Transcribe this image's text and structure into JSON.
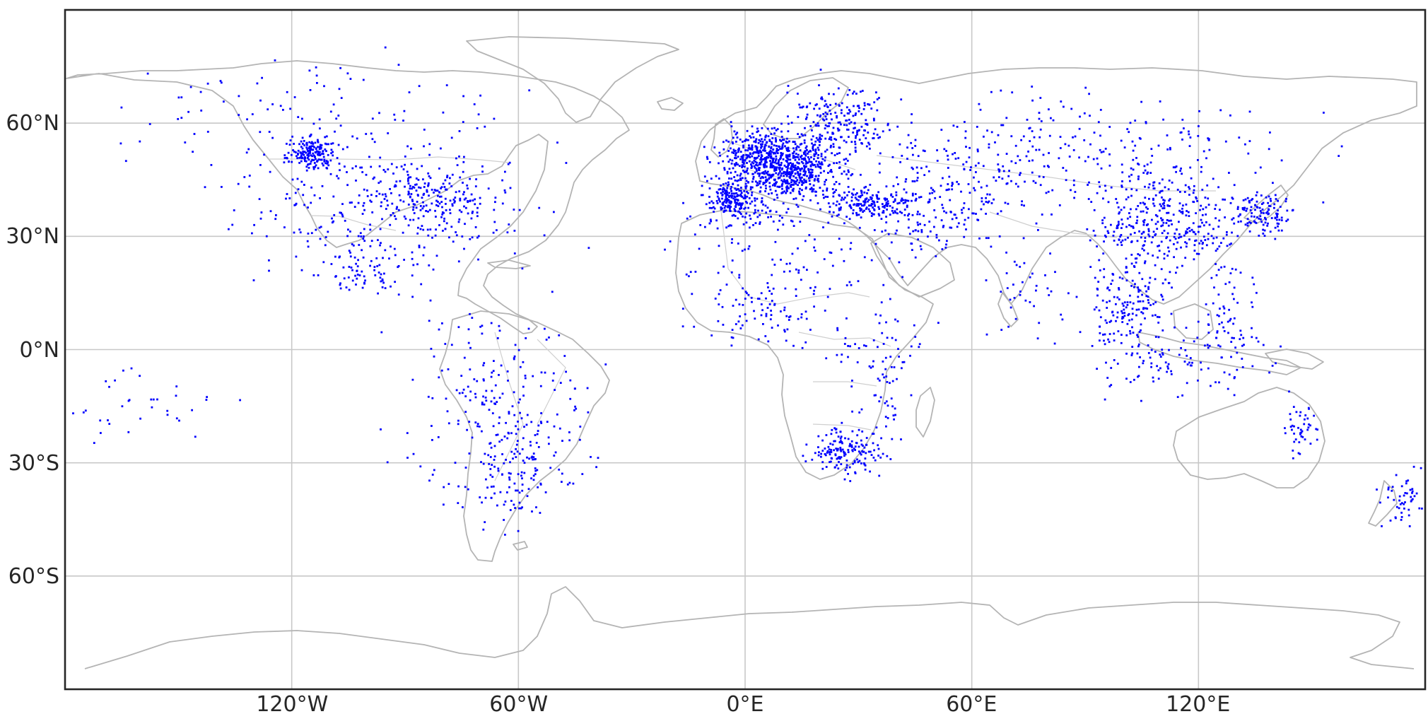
{
  "map": {
    "projection": "plate-carree",
    "lon_range": [
      -180,
      180
    ],
    "lat_range": [
      -90,
      90
    ],
    "grid": true,
    "point_color": "#0000ff",
    "coastline_color": "#b4b4b4",
    "x_ticks": [
      {
        "lon": -120,
        "label": "120°W"
      },
      {
        "lon": -60,
        "label": "60°W"
      },
      {
        "lon": 0,
        "label": "0°E"
      },
      {
        "lon": 60,
        "label": "60°E"
      },
      {
        "lon": 120,
        "label": "120°E"
      }
    ],
    "y_ticks": [
      {
        "lat": 60,
        "label": "60°N"
      },
      {
        "lat": 30,
        "label": "30°N"
      },
      {
        "lat": 0,
        "label": "0°N"
      },
      {
        "lat": -30,
        "label": "30°S"
      },
      {
        "lat": -60,
        "label": "60°S"
      }
    ],
    "station_clusters": [
      {
        "lon": 5,
        "lat": 50,
        "slon": 6,
        "slat": 4,
        "n": 500
      },
      {
        "lon": 15,
        "lat": 47,
        "slon": 6,
        "slat": 4,
        "n": 350
      },
      {
        "lon": -4,
        "lat": 40,
        "slon": 3,
        "slat": 2,
        "n": 160
      },
      {
        "lon": 25,
        "lat": 60,
        "slon": 7,
        "slat": 5,
        "n": 220
      },
      {
        "lon": 33,
        "lat": 39,
        "slon": 6,
        "slat": 2,
        "n": 170
      },
      {
        "lon": 0,
        "lat": 36,
        "slon": 8,
        "slat": 2,
        "n": 60
      },
      {
        "lon": -115,
        "lat": 52,
        "slon": 3,
        "slat": 2,
        "n": 170
      },
      {
        "lon": -95,
        "lat": 38,
        "slon": 18,
        "slat": 9,
        "n": 320
      },
      {
        "lon": -80,
        "lat": 41,
        "slon": 6,
        "slat": 4,
        "n": 120
      },
      {
        "lon": -110,
        "lat": 62,
        "slon": 25,
        "slat": 8,
        "n": 110
      },
      {
        "lon": -100,
        "lat": 20,
        "slon": 6,
        "slat": 4,
        "n": 60
      },
      {
        "lon": -65,
        "lat": -15,
        "slon": 12,
        "slat": 12,
        "n": 220
      },
      {
        "lon": -62,
        "lat": -33,
        "slon": 5,
        "slat": 8,
        "n": 100
      },
      {
        "lon": 5,
        "lat": 10,
        "slon": 8,
        "slat": 4,
        "n": 90
      },
      {
        "lon": 10,
        "lat": 25,
        "slon": 15,
        "slat": 6,
        "n": 80
      },
      {
        "lon": 27,
        "lat": -27,
        "slon": 5,
        "slat": 3,
        "n": 160
      },
      {
        "lon": 35,
        "lat": -5,
        "slon": 6,
        "slat": 10,
        "n": 90
      },
      {
        "lon": 50,
        "lat": 35,
        "slon": 10,
        "slat": 5,
        "n": 140
      },
      {
        "lon": 90,
        "lat": 53,
        "slon": 28,
        "slat": 8,
        "n": 260
      },
      {
        "lon": 112,
        "lat": 33,
        "slon": 10,
        "slat": 7,
        "n": 360
      },
      {
        "lon": 137,
        "lat": 36,
        "slon": 4,
        "slat": 3,
        "n": 110
      },
      {
        "lon": 102,
        "lat": 12,
        "slon": 5,
        "slat": 6,
        "n": 140
      },
      {
        "lon": 115,
        "lat": -3,
        "slon": 12,
        "slat": 5,
        "n": 110
      },
      {
        "lon": 128,
        "lat": 8,
        "slon": 5,
        "slat": 6,
        "n": 60
      },
      {
        "lon": 147,
        "lat": -21,
        "slon": 2,
        "slat": 4,
        "n": 45
      },
      {
        "lon": 174,
        "lat": -40,
        "slon": 3,
        "slat": 3,
        "n": 50
      },
      {
        "lon": -160,
        "lat": -15,
        "slon": 12,
        "slat": 5,
        "n": 35
      },
      {
        "lon": 75,
        "lat": 15,
        "slon": 6,
        "slat": 6,
        "n": 40
      },
      {
        "lon": 63,
        "lat": 45,
        "slon": 12,
        "slat": 5,
        "n": 90
      }
    ]
  }
}
